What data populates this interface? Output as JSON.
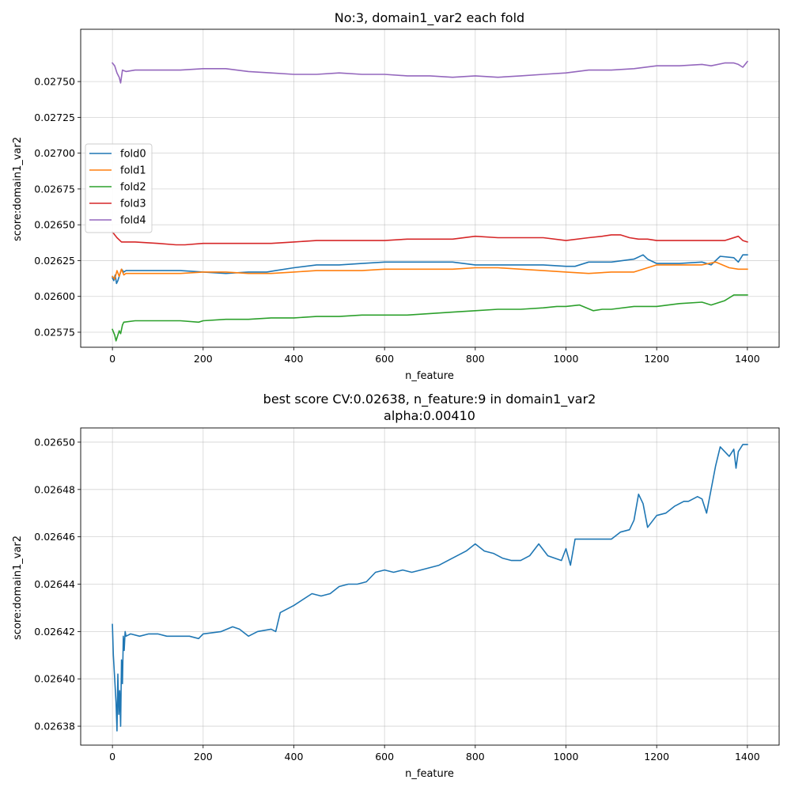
{
  "chart_data": [
    {
      "type": "line",
      "title": "No:3, domain1_var2 each fold",
      "xlabel": "n_feature",
      "ylabel": "score:domain1_var2",
      "xlim": [
        -70,
        1470
      ],
      "ylim": [
        0.025645,
        0.027865
      ],
      "xticks": [
        0,
        200,
        400,
        600,
        800,
        1000,
        1200,
        1400
      ],
      "xtick_labels": [
        "0",
        "200",
        "400",
        "600",
        "800",
        "1000",
        "1200",
        "1400"
      ],
      "yticks": [
        0.02575,
        0.026,
        0.02625,
        0.0265,
        0.02675,
        0.027,
        0.02725,
        0.0275
      ],
      "ytick_labels": [
        "0.02575",
        "0.02600",
        "0.02625",
        "0.02650",
        "0.02675",
        "0.02700",
        "0.02725",
        "0.02750"
      ],
      "grid": true,
      "legend": "center-left",
      "series": [
        {
          "name": "fold0",
          "color": "#1f77b4",
          "x": [
            0,
            3,
            6,
            9,
            12,
            15,
            20,
            25,
            30,
            50,
            100,
            150,
            200,
            250,
            300,
            340,
            360,
            400,
            450,
            500,
            550,
            600,
            650,
            700,
            750,
            800,
            850,
            900,
            950,
            1000,
            1020,
            1050,
            1100,
            1150,
            1170,
            1180,
            1200,
            1250,
            1300,
            1320,
            1340,
            1370,
            1380,
            1390,
            1400
          ],
          "y": [
            0.02613,
            0.02611,
            0.02615,
            0.02609,
            0.02611,
            0.02614,
            0.02619,
            0.02617,
            0.02618,
            0.02618,
            0.02618,
            0.02618,
            0.02617,
            0.02616,
            0.02617,
            0.02617,
            0.02618,
            0.0262,
            0.02622,
            0.02622,
            0.02623,
            0.02624,
            0.02624,
            0.02624,
            0.02624,
            0.02622,
            0.02622,
            0.02622,
            0.02622,
            0.02621,
            0.02621,
            0.02624,
            0.02624,
            0.02626,
            0.02629,
            0.02626,
            0.02623,
            0.02623,
            0.02624,
            0.02622,
            0.02628,
            0.02627,
            0.02624,
            0.02629,
            0.02629
          ]
        },
        {
          "name": "fold1",
          "color": "#ff7f0e",
          "x": [
            0,
            5,
            10,
            15,
            20,
            25,
            30,
            50,
            100,
            150,
            200,
            250,
            300,
            350,
            400,
            450,
            500,
            550,
            600,
            650,
            700,
            750,
            800,
            850,
            900,
            950,
            1000,
            1050,
            1100,
            1150,
            1180,
            1200,
            1250,
            1300,
            1330,
            1360,
            1380,
            1400
          ],
          "y": [
            0.02614,
            0.02612,
            0.02618,
            0.02614,
            0.02619,
            0.02615,
            0.02616,
            0.02616,
            0.02616,
            0.02616,
            0.02617,
            0.02617,
            0.02616,
            0.02616,
            0.02617,
            0.02618,
            0.02618,
            0.02618,
            0.02619,
            0.02619,
            0.02619,
            0.02619,
            0.0262,
            0.0262,
            0.02619,
            0.02618,
            0.02617,
            0.02616,
            0.02617,
            0.02617,
            0.0262,
            0.02622,
            0.02622,
            0.02622,
            0.02624,
            0.0262,
            0.02619,
            0.02619
          ]
        },
        {
          "name": "fold2",
          "color": "#2ca02c",
          "x": [
            0,
            5,
            8,
            12,
            15,
            18,
            22,
            25,
            50,
            100,
            150,
            190,
            200,
            250,
            300,
            350,
            400,
            450,
            500,
            550,
            600,
            650,
            700,
            750,
            800,
            850,
            900,
            950,
            980,
            1000,
            1030,
            1060,
            1080,
            1100,
            1150,
            1200,
            1250,
            1300,
            1320,
            1350,
            1370,
            1400
          ],
          "y": [
            0.02577,
            0.02573,
            0.02569,
            0.02573,
            0.02576,
            0.02574,
            0.0258,
            0.02582,
            0.02583,
            0.02583,
            0.02583,
            0.02582,
            0.02583,
            0.02584,
            0.02584,
            0.02585,
            0.02585,
            0.02586,
            0.02586,
            0.02587,
            0.02587,
            0.02587,
            0.02588,
            0.02589,
            0.0259,
            0.02591,
            0.02591,
            0.02592,
            0.02593,
            0.02593,
            0.02594,
            0.0259,
            0.02591,
            0.02591,
            0.02593,
            0.02593,
            0.02595,
            0.02596,
            0.02594,
            0.02597,
            0.02601,
            0.02601
          ]
        },
        {
          "name": "fold3",
          "color": "#d62728",
          "x": [
            0,
            10,
            20,
            30,
            50,
            100,
            140,
            160,
            200,
            250,
            300,
            350,
            400,
            450,
            500,
            550,
            600,
            650,
            700,
            750,
            800,
            850,
            900,
            950,
            1000,
            1050,
            1080,
            1100,
            1120,
            1140,
            1160,
            1180,
            1200,
            1250,
            1300,
            1350,
            1380,
            1390,
            1400
          ],
          "y": [
            0.02645,
            0.02641,
            0.02638,
            0.02638,
            0.02638,
            0.02637,
            0.02636,
            0.02636,
            0.02637,
            0.02637,
            0.02637,
            0.02637,
            0.02638,
            0.02639,
            0.02639,
            0.02639,
            0.02639,
            0.0264,
            0.0264,
            0.0264,
            0.02642,
            0.02641,
            0.02641,
            0.02641,
            0.02639,
            0.02641,
            0.02642,
            0.02643,
            0.02643,
            0.02641,
            0.0264,
            0.0264,
            0.02639,
            0.02639,
            0.02639,
            0.02639,
            0.02642,
            0.02639,
            0.02638
          ]
        },
        {
          "name": "fold4",
          "color": "#9467bd",
          "x": [
            0,
            5,
            10,
            15,
            18,
            22,
            30,
            50,
            100,
            150,
            200,
            250,
            300,
            350,
            400,
            450,
            500,
            550,
            600,
            650,
            700,
            750,
            800,
            850,
            900,
            950,
            1000,
            1050,
            1100,
            1150,
            1200,
            1250,
            1300,
            1320,
            1350,
            1370,
            1380,
            1390,
            1400
          ],
          "y": [
            0.02763,
            0.02761,
            0.02756,
            0.02753,
            0.02749,
            0.02758,
            0.02757,
            0.02758,
            0.02758,
            0.02758,
            0.02759,
            0.02759,
            0.02757,
            0.02756,
            0.02755,
            0.02755,
            0.02756,
            0.02755,
            0.02755,
            0.02754,
            0.02754,
            0.02753,
            0.02754,
            0.02753,
            0.02754,
            0.02755,
            0.02756,
            0.02758,
            0.02758,
            0.02759,
            0.02761,
            0.02761,
            0.02762,
            0.02761,
            0.02763,
            0.02763,
            0.02762,
            0.0276,
            0.02764
          ]
        }
      ]
    },
    {
      "type": "line",
      "title": "best score CV:0.02638, n_feature:9 in domain1_var2",
      "subtitle": "alpha:0.00410",
      "xlabel": "n_feature",
      "ylabel": "score:domain1_var2",
      "xlim": [
        -70,
        1470
      ],
      "ylim": [
        0.026372,
        0.026506
      ],
      "xticks": [
        0,
        200,
        400,
        600,
        800,
        1000,
        1200,
        1400
      ],
      "xtick_labels": [
        "0",
        "200",
        "400",
        "600",
        "800",
        "1000",
        "1200",
        "1400"
      ],
      "yticks": [
        0.02638,
        0.0264,
        0.02642,
        0.02644,
        0.02646,
        0.02648,
        0.0265
      ],
      "ytick_labels": [
        "0.02638",
        "0.02640",
        "0.02642",
        "0.02644",
        "0.02646",
        "0.02648",
        "0.02650"
      ],
      "grid": true,
      "series": [
        {
          "color": "#1f77b4",
          "x": [
            0,
            2,
            5,
            8,
            10,
            12,
            14,
            16,
            18,
            20,
            22,
            24,
            26,
            28,
            30,
            40,
            60,
            80,
            100,
            120,
            150,
            170,
            190,
            200,
            240,
            265,
            280,
            300,
            320,
            350,
            360,
            370,
            380,
            400,
            440,
            460,
            480,
            500,
            520,
            540,
            560,
            580,
            600,
            620,
            640,
            660,
            680,
            700,
            720,
            740,
            760,
            780,
            800,
            820,
            840,
            860,
            880,
            900,
            920,
            940,
            960,
            990,
            1000,
            1010,
            1020,
            1040,
            1060,
            1080,
            1100,
            1120,
            1140,
            1150,
            1160,
            1170,
            1180,
            1200,
            1220,
            1240,
            1260,
            1270,
            1290,
            1300,
            1310,
            1330,
            1340,
            1350,
            1360,
            1370,
            1375,
            1380,
            1390,
            1400
          ],
          "y": [
            0.026423,
            0.02641,
            0.0264,
            0.02639,
            0.026378,
            0.026402,
            0.026385,
            0.026395,
            0.02638,
            0.026408,
            0.026398,
            0.026418,
            0.026412,
            0.02642,
            0.026418,
            0.026419,
            0.026418,
            0.026419,
            0.026419,
            0.026418,
            0.026418,
            0.026418,
            0.026417,
            0.026419,
            0.02642,
            0.026422,
            0.026421,
            0.026418,
            0.02642,
            0.026421,
            0.02642,
            0.026428,
            0.026429,
            0.026431,
            0.026436,
            0.026435,
            0.026436,
            0.026439,
            0.02644,
            0.02644,
            0.026441,
            0.026445,
            0.026446,
            0.026445,
            0.026446,
            0.026445,
            0.026446,
            0.026447,
            0.026448,
            0.02645,
            0.026452,
            0.026454,
            0.026457,
            0.026454,
            0.026453,
            0.026451,
            0.02645,
            0.02645,
            0.026452,
            0.026457,
            0.026452,
            0.02645,
            0.026455,
            0.026448,
            0.026459,
            0.026459,
            0.026459,
            0.026459,
            0.026459,
            0.026462,
            0.026463,
            0.026467,
            0.026478,
            0.026474,
            0.026464,
            0.026469,
            0.02647,
            0.026473,
            0.026475,
            0.026475,
            0.026477,
            0.026476,
            0.02647,
            0.02649,
            0.026498,
            0.026496,
            0.026494,
            0.026497,
            0.026489,
            0.026496,
            0.026499,
            0.026499
          ]
        }
      ]
    }
  ]
}
